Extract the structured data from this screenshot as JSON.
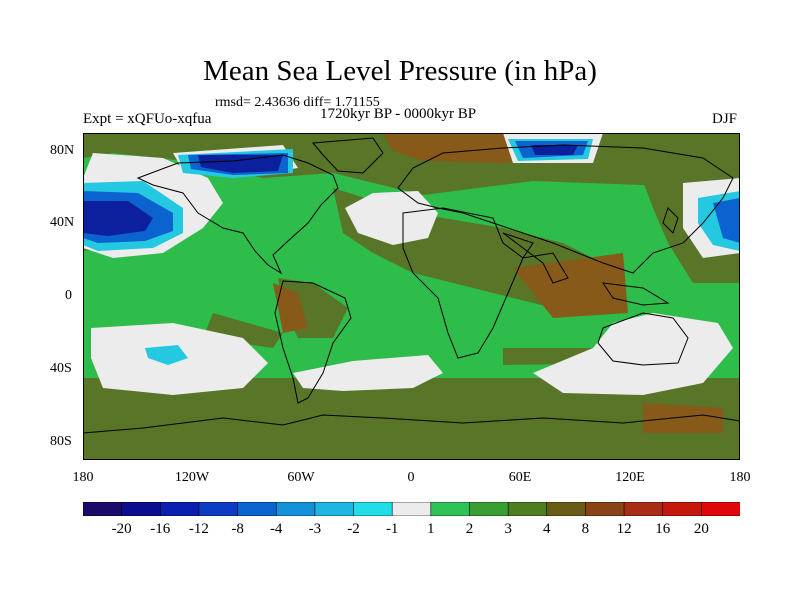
{
  "title": "Mean Sea Level Pressure (in hPa)",
  "stats": "rmsd= 2.43636 diff= 1.71155",
  "period": "1720kyr BP - 0000kyr BP",
  "experiment": "Expt = xQFUo-xqfua",
  "season": "DJF",
  "axes": {
    "lat_ticks": [
      "80N",
      "40N",
      "0",
      "40S",
      "80S"
    ],
    "lon_ticks": [
      "180",
      "120W",
      "60W",
      "0",
      "60E",
      "120E",
      "180"
    ]
  },
  "colorbar": {
    "labels": [
      "-20",
      "-16",
      "-12",
      "-8",
      "-4",
      "-3",
      "-2",
      "-1",
      "1",
      "2",
      "3",
      "4",
      "8",
      "12",
      "16",
      "20"
    ],
    "colors": [
      "#1a0a6b",
      "#0c0c91",
      "#0b1fb0",
      "#0d3cc4",
      "#0a63cf",
      "#1390da",
      "#1fb6e6",
      "#22dde8",
      "#ececec",
      "#2ec455",
      "#3a9f32",
      "#4f7e21",
      "#6a5c17",
      "#8a4316",
      "#a82d12",
      "#c6170b",
      "#e0070a"
    ]
  },
  "map_colors": {
    "background": "#2ebc4b",
    "olive": "#587528",
    "brown": "#875a19",
    "white": "#ececec",
    "cyan": "#24c8e0",
    "blue_light": "#0a63cf",
    "blue_dark": "#0c1f9c",
    "coast": "#000000"
  }
}
